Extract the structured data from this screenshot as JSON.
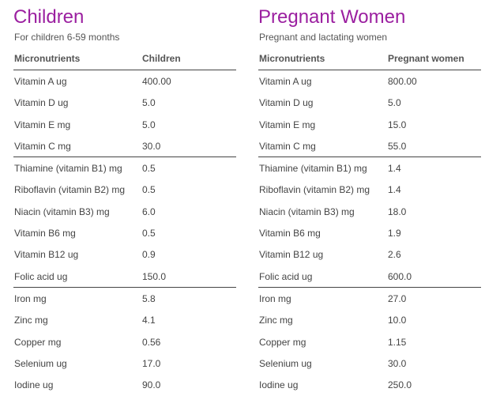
{
  "children": {
    "title": "Children",
    "subtitle": "For children 6-59 months",
    "headers": [
      "Micronutrients",
      "Children"
    ],
    "rows": [
      [
        "Vitamin A ug",
        "400.00"
      ],
      [
        "Vitamin D ug",
        "5.0"
      ],
      [
        "Vitamin E mg",
        "5.0"
      ],
      [
        "Vitamin C mg",
        "30.0"
      ],
      [
        "Thiamine (vitamin B1) mg",
        "0.5"
      ],
      [
        "Riboflavin (vitamin B2) mg",
        "0.5"
      ],
      [
        "Niacin (vitamin B3) mg",
        "6.0"
      ],
      [
        "Vitamin B6 mg",
        "0.5"
      ],
      [
        "Vitamin B12 ug",
        "0.9"
      ],
      [
        "Folic acid ug",
        "150.0"
      ],
      [
        "Iron mg",
        "5.8"
      ],
      [
        "Zinc mg",
        "4.1"
      ],
      [
        "Copper mg",
        "0.56"
      ],
      [
        "Selenium ug",
        "17.0"
      ],
      [
        "Iodine ug",
        "90.0"
      ]
    ]
  },
  "pregnant": {
    "title": "Pregnant Women",
    "subtitle": "Pregnant and lactating women",
    "headers": [
      "Micronutrients",
      "Pregnant women"
    ],
    "rows": [
      [
        "Vitamin A ug",
        "800.00"
      ],
      [
        "Vitamin D ug",
        "5.0"
      ],
      [
        "Vitamin E mg",
        "15.0"
      ],
      [
        "Vitamin C mg",
        "55.0"
      ],
      [
        "Thiamine (vitamin B1) mg",
        "1.4"
      ],
      [
        "Riboflavin (vitamin B2) mg",
        "1.4"
      ],
      [
        "Niacin (vitamin B3) mg",
        "18.0"
      ],
      [
        "Vitamin B6 mg",
        "1.9"
      ],
      [
        "Vitamin B12 ug",
        "2.6"
      ],
      [
        "Folic acid ug",
        "600.0"
      ],
      [
        "Iron mg",
        "27.0"
      ],
      [
        "Zinc mg",
        "10.0"
      ],
      [
        "Copper mg",
        "1.15"
      ],
      [
        "Selenium ug",
        "30.0"
      ],
      [
        "Iodine ug",
        "250.0"
      ]
    ]
  }
}
